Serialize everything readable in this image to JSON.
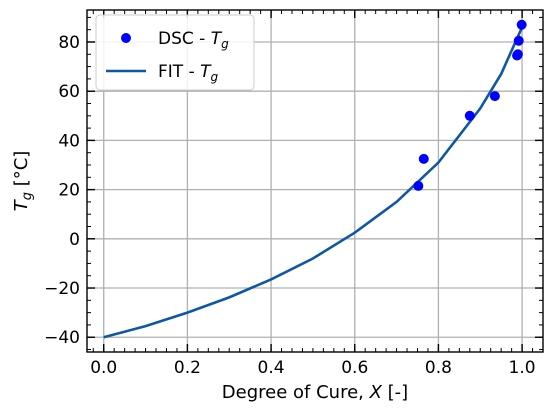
{
  "chart_data": {
    "type": "scatter",
    "title": "",
    "xlabel": {
      "text": "Degree of Cure, ",
      "var": "X",
      "suffix": " [-]"
    },
    "ylabel": {
      "var": "T",
      "sub": "g",
      "suffix": " [°C]"
    },
    "xlim": [
      -0.04,
      1.05
    ],
    "ylim": [
      -46,
      93
    ],
    "xticks": [
      0.0,
      0.2,
      0.4,
      0.6,
      0.8,
      1.0
    ],
    "xtick_labels": [
      "0.0",
      "0.2",
      "0.4",
      "0.6",
      "0.8",
      "1.0"
    ],
    "yticks": [
      -40,
      -20,
      0,
      20,
      40,
      60,
      80
    ],
    "ytick_labels": [
      "−40",
      "−20",
      "0",
      "20",
      "40",
      "60",
      "80"
    ],
    "grid": true,
    "legend_position": "top-left",
    "series": [
      {
        "name": "DSC - ",
        "name_var": "T",
        "name_sub": "g",
        "kind": "scatter",
        "color": "#0000ff",
        "x": [
          0.752,
          0.765,
          0.875,
          0.935,
          0.988,
          0.99,
          0.992,
          0.999
        ],
        "y": [
          21.5,
          32.5,
          50.0,
          58.0,
          74.5,
          75.0,
          80.5,
          87.0
        ]
      },
      {
        "name": "FIT - ",
        "name_var": "T",
        "name_sub": "g",
        "kind": "line",
        "color": "#0d57a3",
        "x": [
          0.0,
          0.1,
          0.2,
          0.3,
          0.4,
          0.5,
          0.6,
          0.7,
          0.8,
          0.9,
          0.95,
          1.0
        ],
        "y": [
          -40.0,
          -35.5,
          -30.0,
          -23.8,
          -16.5,
          -8.0,
          2.5,
          15.0,
          31.0,
          53.0,
          67.0,
          86.0
        ]
      }
    ]
  }
}
